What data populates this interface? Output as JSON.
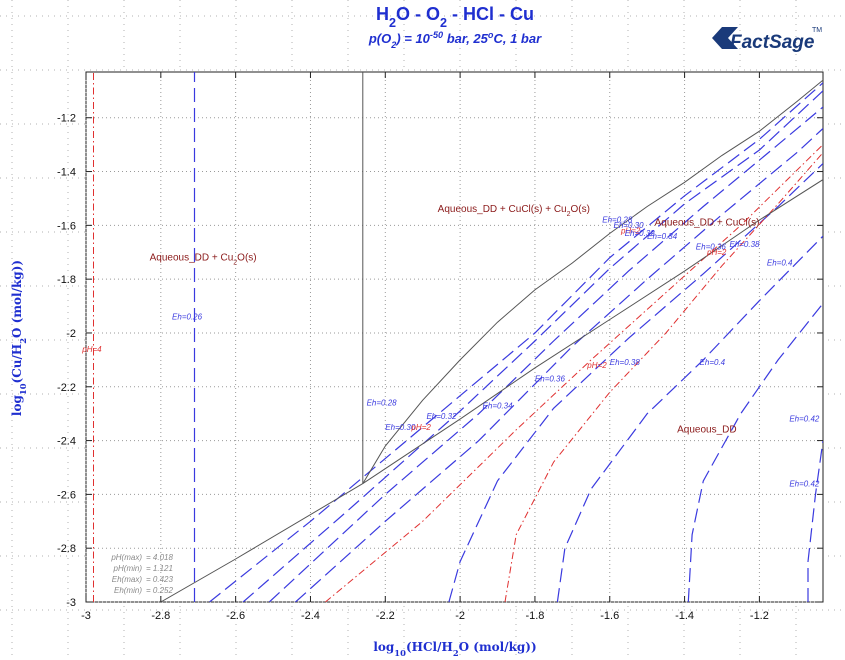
{
  "chart_data": {
    "type": "line",
    "title_parts": [
      "H",
      "2",
      "O - O",
      "2",
      " - HCl - Cu"
    ],
    "subtitle_parts": [
      "p(O",
      "2",
      ") = 10",
      "-50",
      " bar, 25",
      "o",
      "C, 1 bar"
    ],
    "xlabel_parts": [
      "log",
      "10",
      "(HCl/H",
      "2",
      "O (mol/kg))"
    ],
    "ylabel_parts": [
      "log",
      "10",
      "(Cu/H",
      "2",
      "O (mol/kg))"
    ],
    "xlim": [
      -3.0,
      -1.03
    ],
    "ylim": [
      -3.0,
      -1.03
    ],
    "x_ticks": [
      -3,
      -2.8,
      -2.6,
      -2.4,
      -2.2,
      -2,
      -1.8,
      -1.6,
      -1.4,
      -1.2
    ],
    "x_tick_labels": [
      "-3",
      "-2.8",
      "-2.6",
      "-2.4",
      "-2.2",
      "-2",
      "-1.8",
      "-1.6",
      "-1.4",
      "-1.2"
    ],
    "y_ticks": [
      -3,
      -2.8,
      -2.6,
      -2.4,
      -2.2,
      -2,
      -1.8,
      -1.6,
      -1.4,
      -1.2
    ],
    "y_tick_labels": [
      "-3",
      "-2.8",
      "-2.6",
      "-2.4",
      "-2.2",
      "-2",
      "-1.8",
      "-1.6",
      "-1.4",
      "-1.2"
    ],
    "grid": "dotted",
    "logo": {
      "text": "FactSage",
      "mark": "TM"
    },
    "regions": [
      {
        "parts": [
          "Aqueous_DD + Cu",
          "2",
          "O(s)"
        ],
        "x": -2.83,
        "y": -1.73
      },
      {
        "parts": [
          "Aqueous_DD + CuCl(s) + Cu",
          "2",
          "O(s)"
        ],
        "x": -2.06,
        "y": -1.55
      },
      {
        "parts": [
          "Aqueous_DD + CuCl(s)"
        ],
        "x": -1.48,
        "y": -1.6
      },
      {
        "parts": [
          "Aqueous_DD"
        ],
        "x": -1.42,
        "y": -2.37
      }
    ],
    "phase_boundaries": [
      {
        "name": "upper",
        "points": [
          [
            -2.26,
            -2.56
          ],
          [
            -2.2,
            -2.42
          ],
          [
            -2.1,
            -2.25
          ],
          [
            -2.0,
            -2.1
          ],
          [
            -1.9,
            -1.96
          ],
          [
            -1.8,
            -1.84
          ],
          [
            -1.7,
            -1.74
          ],
          [
            -1.6,
            -1.63
          ],
          [
            -1.5,
            -1.53
          ],
          [
            -1.4,
            -1.44
          ],
          [
            -1.3,
            -1.34
          ],
          [
            -1.2,
            -1.25
          ],
          [
            -1.1,
            -1.14
          ],
          [
            -1.03,
            -1.06
          ]
        ]
      },
      {
        "name": "lower",
        "points": [
          [
            -2.26,
            -2.56
          ],
          [
            -2.0,
            -2.32
          ],
          [
            -1.8,
            -2.13
          ],
          [
            -1.6,
            -1.95
          ],
          [
            -1.4,
            -1.77
          ],
          [
            -1.2,
            -1.58
          ],
          [
            -1.03,
            -1.43
          ]
        ]
      },
      {
        "name": "cu2o-cucl-aq",
        "points": [
          [
            -2.26,
            -2.56
          ],
          [
            -2.6,
            -2.84
          ],
          [
            -2.8,
            -3.0
          ]
        ]
      },
      {
        "name": "vertical-cucl",
        "points": [
          [
            -2.26,
            -2.56
          ],
          [
            -2.26,
            -1.03
          ]
        ]
      }
    ],
    "eh_lines": [
      {
        "name": "Eh=0.26",
        "points": [
          [
            -2.71,
            -3.0
          ],
          [
            -2.71,
            -1.03
          ]
        ]
      },
      {
        "name": "Eh=0.28",
        "points": [
          [
            -2.67,
            -3.0
          ],
          [
            -2.4,
            -2.7
          ],
          [
            -2.1,
            -2.35
          ],
          [
            -1.8,
            -2.0
          ],
          [
            -1.6,
            -1.72
          ],
          [
            -1.4,
            -1.49
          ],
          [
            -1.2,
            -1.28
          ],
          [
            -1.03,
            -1.07
          ]
        ]
      },
      {
        "name": "Eh=0.30",
        "points": [
          [
            -2.58,
            -3.0
          ],
          [
            -2.3,
            -2.66
          ],
          [
            -2.0,
            -2.29
          ],
          [
            -1.8,
            -2.03
          ],
          [
            -1.6,
            -1.76
          ],
          [
            -1.4,
            -1.52
          ],
          [
            -1.2,
            -1.32
          ],
          [
            -1.03,
            -1.1
          ]
        ]
      },
      {
        "name": "Eh=0.32",
        "points": [
          [
            -2.51,
            -3.0
          ],
          [
            -2.2,
            -2.6
          ],
          [
            -1.95,
            -2.3
          ],
          [
            -1.75,
            -2.03
          ],
          [
            -1.55,
            -1.77
          ],
          [
            -1.35,
            -1.53
          ],
          [
            -1.15,
            -1.3
          ],
          [
            -1.03,
            -1.16
          ]
        ]
      },
      {
        "name": "Eh=0.34",
        "points": [
          [
            -2.44,
            -3.0
          ],
          [
            -2.2,
            -2.7
          ],
          [
            -1.95,
            -2.4
          ],
          [
            -1.7,
            -2.05
          ],
          [
            -1.5,
            -1.8
          ],
          [
            -1.3,
            -1.56
          ],
          [
            -1.1,
            -1.33
          ],
          [
            -1.03,
            -1.24
          ]
        ]
      },
      {
        "name": "Eh=0.36",
        "points": [
          [
            -2.03,
            -3.0
          ],
          [
            -2.0,
            -2.85
          ],
          [
            -1.9,
            -2.55
          ],
          [
            -1.75,
            -2.28
          ],
          [
            -1.55,
            -2.02
          ],
          [
            -1.35,
            -1.78
          ],
          [
            -1.15,
            -1.53
          ],
          [
            -1.03,
            -1.37
          ]
        ]
      },
      {
        "name": "Eh=0.38",
        "points": [
          [
            -1.74,
            -3.0
          ],
          [
            -1.72,
            -2.8
          ],
          [
            -1.65,
            -2.58
          ],
          [
            -1.5,
            -2.3
          ],
          [
            -1.35,
            -2.1
          ],
          [
            -1.2,
            -1.88
          ],
          [
            -1.03,
            -1.64
          ]
        ]
      },
      {
        "name": "Eh=0.4",
        "points": [
          [
            -1.39,
            -3.0
          ],
          [
            -1.38,
            -2.75
          ],
          [
            -1.35,
            -2.55
          ],
          [
            -1.25,
            -2.3
          ],
          [
            -1.15,
            -2.1
          ],
          [
            -1.03,
            -1.89
          ]
        ]
      },
      {
        "name": "Eh=0.42",
        "points": [
          [
            -1.07,
            -3.0
          ],
          [
            -1.07,
            -2.85
          ],
          [
            -1.05,
            -2.6
          ],
          [
            -1.03,
            -2.4
          ]
        ]
      }
    ],
    "ph_lines": [
      {
        "name": "pH=4",
        "points": [
          [
            -2.98,
            -3.0
          ],
          [
            -2.98,
            -1.03
          ]
        ]
      },
      {
        "name": "pH=2",
        "points": [
          [
            -1.88,
            -3.0
          ],
          [
            -1.85,
            -2.75
          ],
          [
            -1.75,
            -2.48
          ],
          [
            -1.6,
            -2.22
          ],
          [
            -1.45,
            -2.0
          ],
          [
            -1.3,
            -1.75
          ],
          [
            -1.15,
            -1.52
          ],
          [
            -1.03,
            -1.33
          ]
        ]
      },
      {
        "name": "pH=2 (upper)",
        "points": [
          [
            -2.36,
            -3.0
          ],
          [
            -2.1,
            -2.7
          ],
          [
            -1.85,
            -2.36
          ],
          [
            -1.65,
            -2.1
          ],
          [
            -1.45,
            -1.85
          ],
          [
            -1.25,
            -1.6
          ],
          [
            -1.03,
            -1.3
          ]
        ]
      }
    ],
    "line_labels": [
      {
        "text": "Eh=0.26",
        "x": -2.77,
        "y": -1.95,
        "color": "blue"
      },
      {
        "text": "pH=4",
        "x": -3.01,
        "y": -2.07,
        "color": "red"
      },
      {
        "text": "Eh=0.28",
        "x": -2.25,
        "y": -2.27,
        "color": "blue"
      },
      {
        "text": "Eh=0.30",
        "x": -2.2,
        "y": -2.36,
        "color": "blue"
      },
      {
        "text": "pH=2",
        "x": -2.13,
        "y": -2.36,
        "color": "red"
      },
      {
        "text": "Eh=0.32",
        "x": -2.09,
        "y": -2.32,
        "color": "blue"
      },
      {
        "text": "Eh=0.34",
        "x": -1.94,
        "y": -2.28,
        "color": "blue"
      },
      {
        "text": "Eh=0.36",
        "x": -1.8,
        "y": -2.18,
        "color": "blue"
      },
      {
        "text": "pH=2",
        "x": -1.66,
        "y": -2.13,
        "color": "red"
      },
      {
        "text": "Eh=0.38",
        "x": -1.6,
        "y": -2.12,
        "color": "blue"
      },
      {
        "text": "Eh=0.4",
        "x": -1.36,
        "y": -2.12,
        "color": "blue"
      },
      {
        "text": "Eh=0.42",
        "x": -1.12,
        "y": -2.33,
        "color": "blue"
      },
      {
        "text": "Eh=0.42",
        "x": -1.12,
        "y": -2.57,
        "color": "blue"
      },
      {
        "text": "Eh=0.28",
        "x": -1.62,
        "y": -1.59,
        "color": "blue"
      },
      {
        "text": "Eh=0.30",
        "x": -1.59,
        "y": -1.61,
        "color": "blue"
      },
      {
        "text": "pH=2",
        "x": -1.57,
        "y": -1.63,
        "color": "red"
      },
      {
        "text": "Eh=0.32",
        "x": -1.56,
        "y": -1.64,
        "color": "blue"
      },
      {
        "text": "Eh=0.34",
        "x": -1.5,
        "y": -1.65,
        "color": "blue"
      },
      {
        "text": "Eh=0.36",
        "x": -1.37,
        "y": -1.69,
        "color": "blue"
      },
      {
        "text": "pH=2",
        "x": -1.34,
        "y": -1.71,
        "color": "red"
      },
      {
        "text": "Eh=0.38",
        "x": -1.28,
        "y": -1.68,
        "color": "blue"
      },
      {
        "text": "Eh=0.4",
        "x": -1.18,
        "y": -1.75,
        "color": "blue"
      }
    ],
    "stats": [
      {
        "label": "pH(max)",
        "value": "4.018"
      },
      {
        "label": "pH(min)",
        "value": "1.121"
      },
      {
        "label": "Eh(max)",
        "value": "0.423"
      },
      {
        "label": "Eh(min)",
        "value": "0.252"
      }
    ],
    "colors": {
      "boundary": "#555555",
      "eh": "#3a3adf",
      "ph": "#e03030",
      "axis_title": "#1f2fd0",
      "region": "#8b1a1a"
    }
  }
}
